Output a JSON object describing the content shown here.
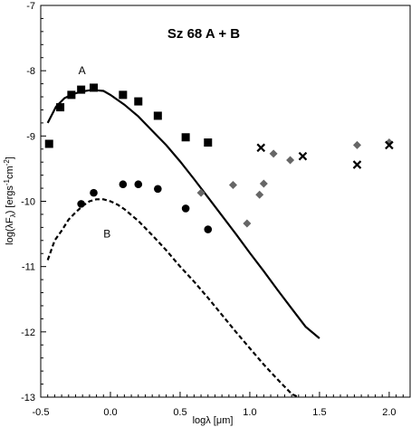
{
  "chart_data": {
    "type": "scatter",
    "title": "Sz 68 A + B",
    "xlabel": "logλ [μm]",
    "ylabel": "log(λF",
    "ylabel_sub": "λ",
    "ylabel_unit": ") [ergs",
    "ylabel_exp1": "-1",
    "ylabel_mid": "cm",
    "ylabel_exp2": "-2",
    "ylabel_end": "]",
    "xlim": [
      -0.5,
      2.15
    ],
    "ylim": [
      -13,
      -7
    ],
    "x_ticks": [
      -0.5,
      0.0,
      0.5,
      1.0,
      1.5,
      2.0
    ],
    "x_tick_labels": [
      "-0.5",
      "0.0",
      "0.5",
      "1.0",
      "1.5",
      "2.0"
    ],
    "y_ticks": [
      -13,
      -12,
      -11,
      -10,
      -9,
      -8,
      -7
    ],
    "y_tick_labels": [
      "-13",
      "-12",
      "-11",
      "-10",
      "-9",
      "-8",
      "-7"
    ],
    "grid": false,
    "annotations": [
      {
        "text": "A",
        "x": -0.23,
        "y": -8.0
      },
      {
        "text": "B",
        "x": -0.05,
        "y": -10.5
      }
    ],
    "series": [
      {
        "marker": "square",
        "color": "#000000",
        "x": [
          -0.44,
          -0.36,
          -0.28,
          -0.21,
          -0.12,
          0.09,
          0.2,
          0.34,
          0.54,
          0.7
        ],
        "y": [
          -9.12,
          -8.56,
          -8.37,
          -8.29,
          -8.26,
          -8.37,
          -8.47,
          -8.69,
          -9.02,
          -9.1
        ]
      },
      {
        "marker": "circle",
        "color": "#000000",
        "x": [
          -0.21,
          -0.12,
          0.09,
          0.2,
          0.34,
          0.54,
          0.7
        ],
        "y": [
          -10.04,
          -9.87,
          -9.74,
          -9.74,
          -9.81,
          -10.11,
          -10.43
        ]
      },
      {
        "marker": "diamond",
        "color": "#666666",
        "x": [
          0.65,
          0.88,
          0.98,
          1.07,
          1.1,
          1.17,
          1.29,
          1.77,
          2.0
        ],
        "y": [
          -9.87,
          -9.75,
          -10.34,
          -9.9,
          -9.73,
          -9.27,
          -9.37,
          -9.14,
          -9.1
        ]
      },
      {
        "marker": "x",
        "color": "#000000",
        "x": [
          1.08,
          1.38,
          1.77,
          2.0
        ],
        "y": [
          -9.18,
          -9.31,
          -9.44,
          -9.14
        ]
      },
      {
        "line": "solid",
        "color": "#000000",
        "x": [
          -0.45,
          -0.39,
          -0.33,
          -0.27,
          -0.21,
          -0.15,
          -0.1,
          -0.05,
          0.0,
          0.1,
          0.2,
          0.3,
          0.4,
          0.5,
          0.6,
          0.7,
          0.8,
          0.9,
          1.0,
          1.1,
          1.2,
          1.3,
          1.4,
          1.5
        ],
        "y": [
          -8.8,
          -8.55,
          -8.42,
          -8.36,
          -8.32,
          -8.3,
          -8.3,
          -8.31,
          -8.37,
          -8.52,
          -8.7,
          -8.92,
          -9.14,
          -9.39,
          -9.66,
          -9.94,
          -10.22,
          -10.5,
          -10.79,
          -11.07,
          -11.36,
          -11.64,
          -11.92,
          -12.1
        ]
      },
      {
        "line": "dashed",
        "color": "#000000",
        "x": [
          -0.45,
          -0.4,
          -0.35,
          -0.3,
          -0.25,
          -0.2,
          -0.15,
          -0.1,
          -0.05,
          0.0,
          0.05,
          0.1,
          0.2,
          0.3,
          0.4,
          0.5,
          0.6,
          0.7,
          0.8,
          0.9,
          1.0,
          1.1,
          1.2,
          1.3,
          1.35
        ],
        "y": [
          -10.9,
          -10.6,
          -10.45,
          -10.28,
          -10.17,
          -10.07,
          -10.0,
          -9.97,
          -9.97,
          -10.0,
          -10.05,
          -10.12,
          -10.3,
          -10.52,
          -10.75,
          -11.0,
          -11.23,
          -11.48,
          -11.74,
          -12.0,
          -12.25,
          -12.5,
          -12.73,
          -12.95,
          -13.0
        ]
      }
    ]
  }
}
